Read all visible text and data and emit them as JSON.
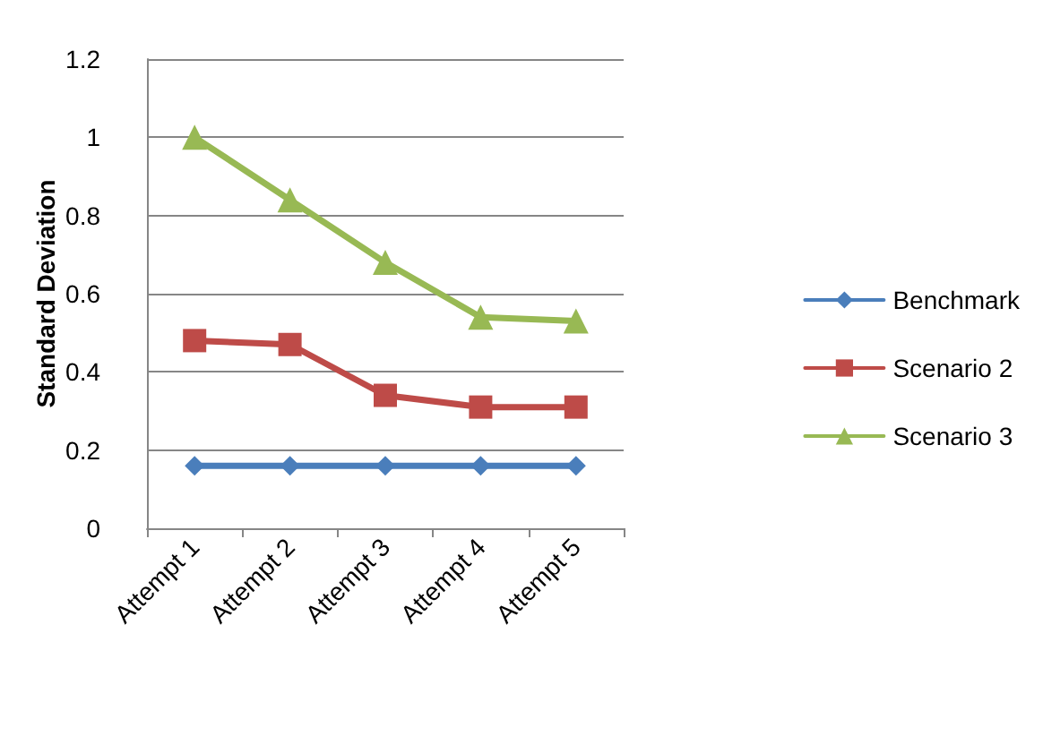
{
  "chart_data": {
    "type": "line",
    "ylabel": "Standard Deviation",
    "categories": [
      "Attempt 1",
      "Attempt 2",
      "Attempt 3",
      "Attempt 4",
      "Attempt 5"
    ],
    "series": [
      {
        "name": "Benchmark",
        "color": "#4a7ebb",
        "marker": "diamond",
        "values": [
          0.16,
          0.16,
          0.16,
          0.16,
          0.16
        ]
      },
      {
        "name": "Scenario 2",
        "color": "#be4b48",
        "marker": "square",
        "values": [
          0.48,
          0.47,
          0.34,
          0.31,
          0.31
        ]
      },
      {
        "name": "Scenario 3",
        "color": "#98b954",
        "marker": "triangle",
        "values": [
          1.0,
          0.84,
          0.68,
          0.54,
          0.53
        ]
      }
    ],
    "ylim": [
      0,
      1.2
    ],
    "yticks": [
      0,
      0.2,
      0.4,
      0.6,
      0.8,
      1,
      1.2
    ],
    "grid": "y",
    "legend": "right",
    "line_style": "solid"
  }
}
